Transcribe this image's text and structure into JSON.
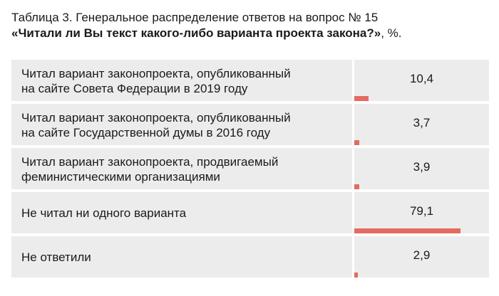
{
  "caption": {
    "line1": "Таблица 3. Генеральное распределение ответов на вопрос № 15",
    "question": "«Читали ли Вы текст какого-либо варианта проекта закона?»",
    "suffix": ", %."
  },
  "accent_color": "#e36b5f",
  "rows": [
    {
      "label": "Читал вариант законопроекта, опубликованный\nна сайте Совета Федерации в 2019 году",
      "value": "10,4",
      "percent": 10.4
    },
    {
      "label": "Читал вариант законопроекта, опубликованный\nна сайте Государственной думы в 2016 году",
      "value": "3,7",
      "percent": 3.7
    },
    {
      "label": "Читал вариант законопроекта, продвигаемый\nфеминистическими организациями",
      "value": "3,9",
      "percent": 3.9
    },
    {
      "label": "Не читал ни одного варианта",
      "value": "79,1",
      "percent": 79.1
    },
    {
      "label": "Не ответили",
      "value": "2,9",
      "percent": 2.9
    }
  ]
}
